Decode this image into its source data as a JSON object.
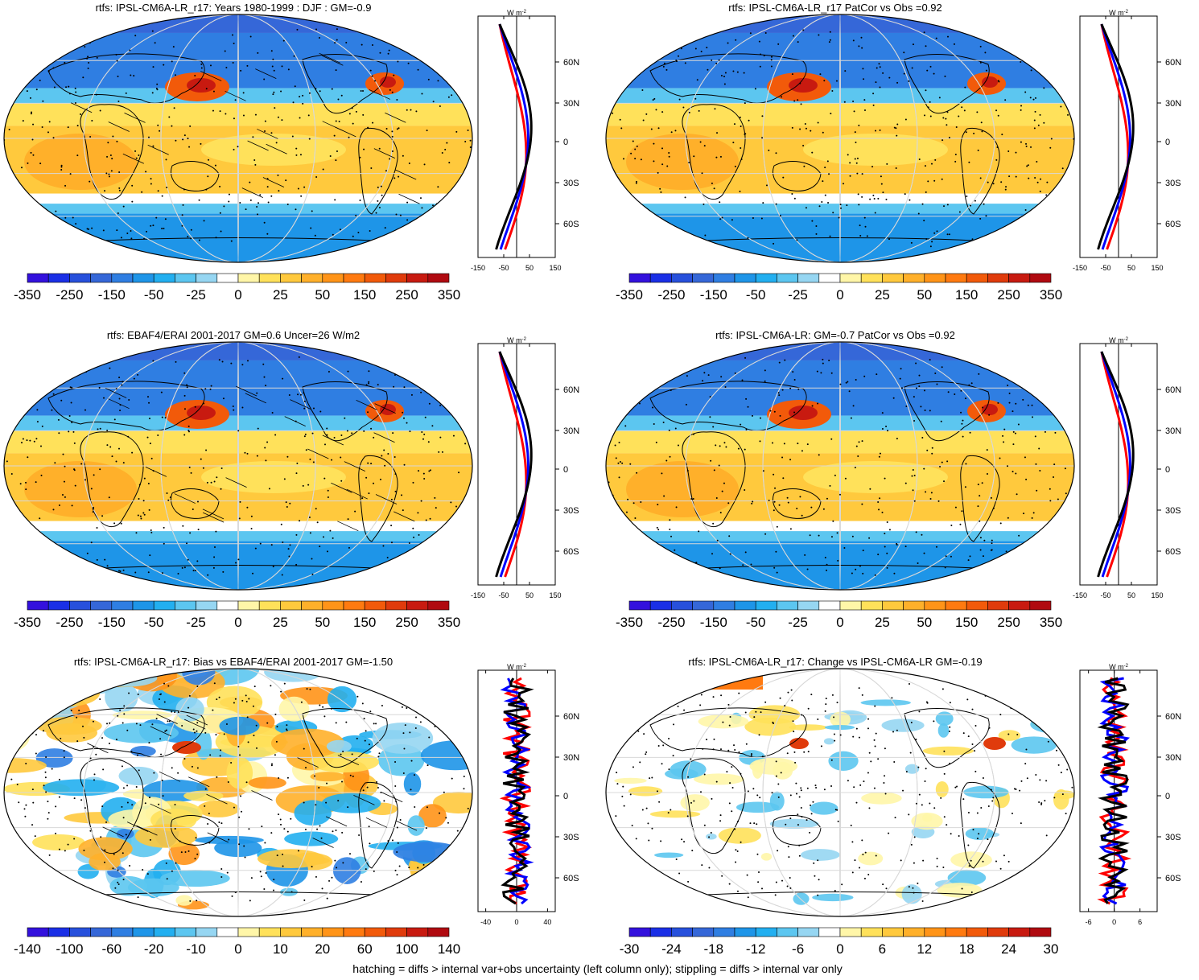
{
  "colors": {
    "map_background": "#ffffff",
    "contours": [
      "#3311dd",
      "#1a2fe6",
      "#2750dc",
      "#3567d8",
      "#2f7ee2",
      "#1e95e8",
      "#22aff0",
      "#5cc6f0",
      "#96d6f2",
      "#ffffff",
      "#fff6a8",
      "#ffe15a",
      "#ffc93d",
      "#ffb02a",
      "#ff9418",
      "#ff7a10",
      "#f25a0a",
      "#e03b0c",
      "#c81a10",
      "#b00a10"
    ],
    "line_obs": "#000000",
    "line_model_a": "#0000ff",
    "line_model_b": "#ff0000"
  },
  "panels": [
    {
      "title": "rtfs: IPSL-CM6A-LR_r17: Years 1980-1999 : DJF : GM=-0.9",
      "colorbar_labels": [
        "-350",
        "-250",
        "-150",
        "-50",
        "-25",
        "0",
        "25",
        "50",
        "150",
        "250",
        "350"
      ],
      "zonal_ticks": [
        "-150",
        "-50",
        "50",
        "150"
      ],
      "zonal_range": [
        -150,
        150
      ],
      "lat_labels": [
        "60N",
        "30N",
        "0",
        "30S",
        "60S"
      ],
      "unit_label": "W m",
      "unit_sup": "-2",
      "pattern": "mean"
    },
    {
      "title": "rtfs: IPSL-CM6A-LR_r17 PatCor vs Obs =0.92",
      "colorbar_labels": [
        "-350",
        "-250",
        "-150",
        "-50",
        "-25",
        "0",
        "25",
        "50",
        "150",
        "250",
        "350"
      ],
      "zonal_ticks": [
        "-150",
        "-50",
        "50",
        "150"
      ],
      "zonal_range": [
        -150,
        150
      ],
      "lat_labels": [
        "60N",
        "30N",
        "0",
        "30S",
        "60S"
      ],
      "unit_label": "W m",
      "unit_sup": "-2",
      "pattern": "mean"
    },
    {
      "title": "rtfs: EBAF4/ERAI 2001-2017 GM=0.6 Uncer=26 W/m2",
      "colorbar_labels": [
        "-350",
        "-250",
        "-150",
        "-50",
        "-25",
        "0",
        "25",
        "50",
        "150",
        "250",
        "350"
      ],
      "zonal_ticks": [
        "-150",
        "-50",
        "50",
        "150"
      ],
      "zonal_range": [
        -150,
        150
      ],
      "lat_labels": [
        "60N",
        "30N",
        "0",
        "30S",
        "60S"
      ],
      "unit_label": "W m",
      "unit_sup": "-2",
      "pattern": "mean"
    },
    {
      "title": "rtfs: IPSL-CM6A-LR: GM=-0.7 PatCor vs Obs =0.92",
      "colorbar_labels": [
        "-350",
        "-250",
        "-150",
        "-50",
        "-25",
        "0",
        "25",
        "50",
        "150",
        "250",
        "350"
      ],
      "zonal_ticks": [
        "-150",
        "-50",
        "50",
        "150"
      ],
      "zonal_range": [
        -150,
        150
      ],
      "lat_labels": [
        "60N",
        "30N",
        "0",
        "30S",
        "60S"
      ],
      "unit_label": "W m",
      "unit_sup": "-2",
      "pattern": "mean"
    },
    {
      "title": "rtfs: IPSL-CM6A-LR_r17: Bias vs EBAF4/ERAI 2001-2017 GM=-1.50",
      "colorbar_labels": [
        "-140",
        "-100",
        "-60",
        "-20",
        "-10",
        "0",
        "10",
        "20",
        "60",
        "100",
        "140"
      ],
      "zonal_ticks": [
        "-40",
        "0",
        "40"
      ],
      "zonal_range": [
        -50,
        50
      ],
      "lat_labels": [
        "60N",
        "30N",
        "0",
        "30S",
        "60S"
      ],
      "unit_label": "W m",
      "unit_sup": "-2",
      "pattern": "bias"
    },
    {
      "title": "rtfs: IPSL-CM6A-LR_r17: Change vs IPSL-CM6A-LR GM=-0.19",
      "colorbar_labels": [
        "-30",
        "-24",
        "-18",
        "-12",
        "-6",
        "0",
        "6",
        "12",
        "18",
        "24",
        "30"
      ],
      "zonal_ticks": [
        "-6",
        "0",
        "6"
      ],
      "zonal_range": [
        -8,
        10
      ],
      "lat_labels": [
        "60N",
        "30N",
        "0",
        "30S",
        "60S"
      ],
      "unit_label": "W m",
      "unit_sup": "-2",
      "pattern": "change"
    }
  ],
  "footer": "hatching = diffs > internal var+obs uncertainty (left column only); stippling = diffs > internal var only"
}
